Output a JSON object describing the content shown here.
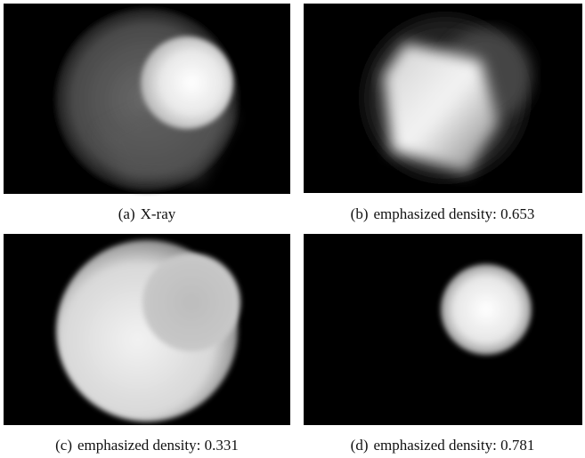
{
  "figures": [
    {
      "label": "(a)",
      "caption": "X-ray"
    },
    {
      "label": "(b)",
      "caption": "emphasized density: 0.653"
    },
    {
      "label": "(c)",
      "caption": "emphasized density: 0.331"
    },
    {
      "label": "(d)",
      "caption": "emphasized density: 0.781"
    }
  ]
}
